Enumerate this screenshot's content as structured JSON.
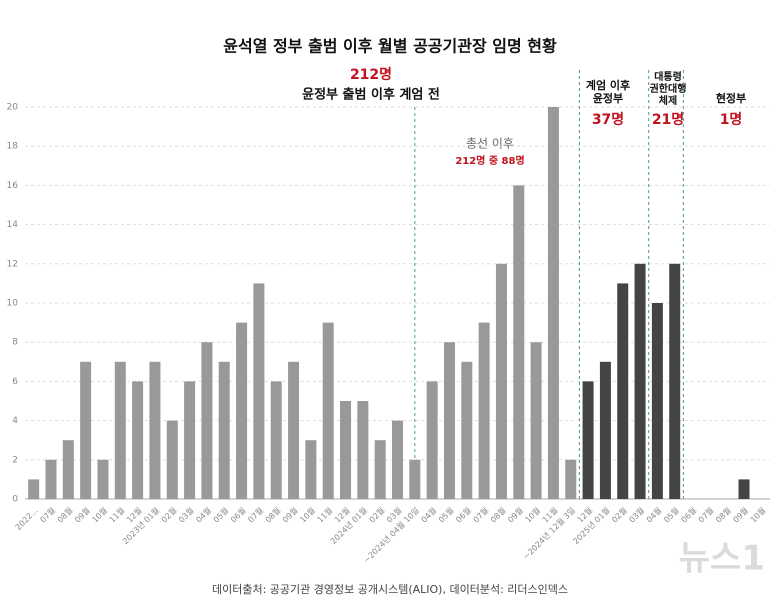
{
  "chart_data": {
    "type": "bar",
    "title": "윤석열 정부 출범 이후 월별 공공기관장 임명 현황",
    "categories": [
      "2022...",
      "07월",
      "08월",
      "09월",
      "10월",
      "11월",
      "12월",
      "2023년 01월",
      "02월",
      "03월",
      "04월",
      "05월",
      "06월",
      "07월",
      "08월",
      "09월",
      "10월",
      "11월",
      "12월",
      "2024년 01월",
      "02월",
      "03월",
      "~2024년 04월 10일",
      "04월",
      "05월",
      "06월",
      "07월",
      "08월",
      "09월",
      "10월",
      "11월",
      "~2024년 12월 3일",
      "12월",
      "2025년 01월",
      "02월",
      "03월",
      "04월",
      "05월",
      "06월",
      "07월",
      "08월",
      "09월",
      "10월"
    ],
    "series": [
      {
        "color": "#999999",
        "values": [
          1,
          2,
          3,
          7,
          2,
          7,
          6,
          7,
          4,
          6,
          8,
          7,
          9,
          11,
          6,
          7,
          3,
          9,
          5,
          5,
          3,
          4,
          2,
          6,
          8,
          7,
          9,
          12,
          16,
          8,
          20,
          2,
          null,
          null,
          null,
          null,
          null,
          null,
          null,
          null,
          null,
          null,
          null
        ]
      },
      {
        "color": "#444444",
        "values": [
          null,
          null,
          null,
          null,
          null,
          null,
          null,
          null,
          null,
          null,
          null,
          null,
          null,
          null,
          null,
          null,
          null,
          null,
          null,
          null,
          null,
          null,
          null,
          null,
          null,
          null,
          null,
          null,
          null,
          null,
          null,
          null,
          6,
          7,
          11,
          12,
          10,
          12,
          0,
          0,
          0,
          1,
          0
        ]
      }
    ],
    "ylim": [
      0,
      20
    ],
    "yticks": [
      0,
      2,
      4,
      6,
      8,
      10,
      12,
      14,
      16,
      18,
      20
    ],
    "grid": true,
    "annotations": {
      "pre_total": "212명",
      "pre_label": "윤정부 출범 이후 계엄 전",
      "election_label": "총선 이후",
      "election_count": "212명 중 88명",
      "martial_label": [
        "계엄 이후",
        "윤정부"
      ],
      "martial_count": "37명",
      "acting_label": [
        "대통령",
        "권한대행",
        "체제"
      ],
      "acting_count": "21명",
      "current_label": "현정부",
      "current_count": "1명"
    },
    "source": "데이터출처: 공공기관 경영정보 공개시스템(ALIO), 데이터분석: 리더스인덱스",
    "watermark": "뉴스1"
  }
}
